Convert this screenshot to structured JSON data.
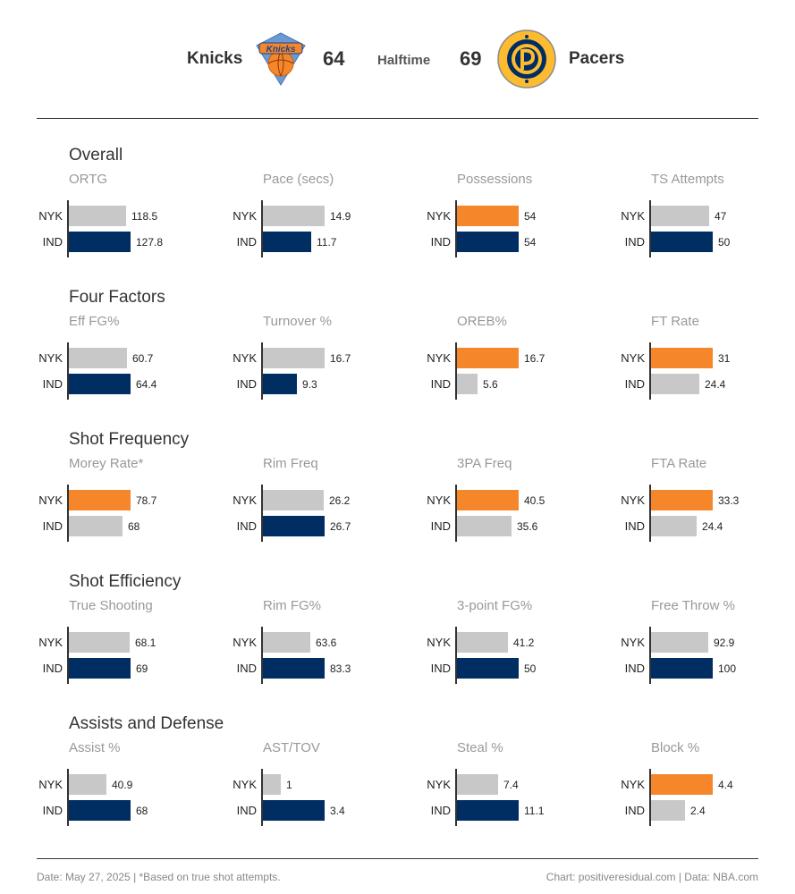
{
  "header": {
    "away_name": "Knicks",
    "away_score": "64",
    "status": "Halftime",
    "home_score": "69",
    "home_name": "Pacers",
    "away_logo_text": "NEW YORK KNICKS",
    "home_logo_text": "INDIANA PACERS"
  },
  "colors": {
    "highlight": "#f5862a",
    "ind": "#002d62",
    "neutral": "#c8c8c8"
  },
  "chart_data": {
    "type": "bar",
    "teams": [
      "NYK",
      "IND"
    ],
    "sections": [
      {
        "title": "Overall",
        "metrics": [
          {
            "name": "ORTG",
            "values": [
              118.5,
              127.8
            ],
            "labels": [
              "118.5",
              "127.8"
            ],
            "colors": [
              "neutral",
              "ind"
            ]
          },
          {
            "name": "Pace (secs)",
            "values": [
              14.9,
              11.7
            ],
            "labels": [
              "14.9",
              "11.7"
            ],
            "colors": [
              "neutral",
              "ind"
            ]
          },
          {
            "name": "Possessions",
            "values": [
              54,
              54
            ],
            "labels": [
              "54",
              "54"
            ],
            "colors": [
              "highlight",
              "ind"
            ]
          },
          {
            "name": "TS Attempts",
            "values": [
              47,
              50
            ],
            "labels": [
              "47",
              "50"
            ],
            "colors": [
              "neutral",
              "ind"
            ]
          }
        ]
      },
      {
        "title": "Four Factors",
        "metrics": [
          {
            "name": "Eff FG%",
            "values": [
              60.7,
              64.4
            ],
            "labels": [
              "60.7",
              "64.4"
            ],
            "colors": [
              "neutral",
              "ind"
            ]
          },
          {
            "name": "Turnover %",
            "values": [
              16.7,
              9.3
            ],
            "labels": [
              "16.7",
              "9.3"
            ],
            "colors": [
              "neutral",
              "ind"
            ]
          },
          {
            "name": "OREB%",
            "values": [
              16.7,
              5.6
            ],
            "labels": [
              "16.7",
              "5.6"
            ],
            "colors": [
              "highlight",
              "neutral"
            ]
          },
          {
            "name": "FT Rate",
            "values": [
              31,
              24.4
            ],
            "labels": [
              "31",
              "24.4"
            ],
            "colors": [
              "highlight",
              "neutral"
            ]
          }
        ]
      },
      {
        "title": "Shot Frequency",
        "metrics": [
          {
            "name": "Morey Rate*",
            "values": [
              78.7,
              68
            ],
            "labels": [
              "78.7",
              "68"
            ],
            "colors": [
              "highlight",
              "neutral"
            ]
          },
          {
            "name": "Rim Freq",
            "values": [
              26.2,
              26.7
            ],
            "labels": [
              "26.2",
              "26.7"
            ],
            "colors": [
              "neutral",
              "ind"
            ]
          },
          {
            "name": "3PA Freq",
            "values": [
              40.5,
              35.6
            ],
            "labels": [
              "40.5",
              "35.6"
            ],
            "colors": [
              "highlight",
              "neutral"
            ]
          },
          {
            "name": "FTA Rate",
            "values": [
              33.3,
              24.4
            ],
            "labels": [
              "33.3",
              "24.4"
            ],
            "colors": [
              "highlight",
              "neutral"
            ]
          }
        ]
      },
      {
        "title": "Shot Efficiency",
        "metrics": [
          {
            "name": "True Shooting",
            "values": [
              68.1,
              69
            ],
            "labels": [
              "68.1",
              "69"
            ],
            "colors": [
              "neutral",
              "ind"
            ]
          },
          {
            "name": "Rim FG%",
            "values": [
              63.6,
              83.3
            ],
            "labels": [
              "63.6",
              "83.3"
            ],
            "colors": [
              "neutral",
              "ind"
            ]
          },
          {
            "name": "3-point FG%",
            "values": [
              41.2,
              50
            ],
            "labels": [
              "41.2",
              "50"
            ],
            "colors": [
              "neutral",
              "ind"
            ]
          },
          {
            "name": "Free Throw %",
            "values": [
              92.9,
              100
            ],
            "labels": [
              "92.9",
              "100"
            ],
            "colors": [
              "neutral",
              "ind"
            ]
          }
        ]
      },
      {
        "title": "Assists and Defense",
        "metrics": [
          {
            "name": "Assist %",
            "values": [
              40.9,
              68
            ],
            "labels": [
              "40.9",
              "68"
            ],
            "colors": [
              "neutral",
              "ind"
            ]
          },
          {
            "name": "AST/TOV",
            "values": [
              1,
              3.4
            ],
            "labels": [
              "1",
              "3.4"
            ],
            "colors": [
              "neutral",
              "ind"
            ]
          },
          {
            "name": "Steal %",
            "values": [
              7.4,
              11.1
            ],
            "labels": [
              "7.4",
              "11.1"
            ],
            "colors": [
              "neutral",
              "ind"
            ]
          },
          {
            "name": "Block %",
            "values": [
              4.4,
              2.4
            ],
            "labels": [
              "4.4",
              "2.4"
            ],
            "colors": [
              "highlight",
              "neutral"
            ]
          }
        ]
      }
    ]
  },
  "footer": {
    "left": "Date:  May 27, 2025  | *Based on true shot attempts.",
    "right": "Chart: positiveresidual.com  |  Data: NBA.com"
  }
}
